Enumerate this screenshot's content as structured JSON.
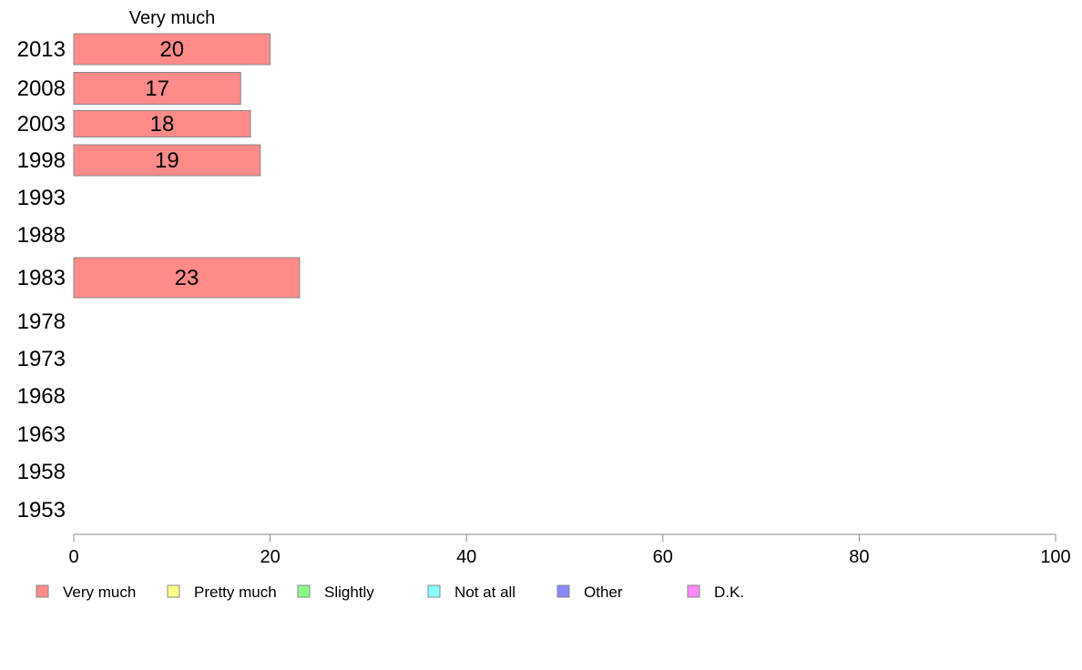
{
  "chart_data": {
    "type": "bar",
    "orientation": "horizontal",
    "stacked": true,
    "column_header": "Very much",
    "categories": [
      "2013",
      "2008",
      "2003",
      "1998",
      "1993",
      "1988",
      "1983",
      "1978",
      "1973",
      "1968",
      "1963",
      "1958",
      "1953"
    ],
    "series": [
      {
        "name": "Very much",
        "color": "#ff8a8a",
        "values": [
          20,
          17,
          18,
          19,
          null,
          null,
          23,
          null,
          null,
          null,
          null,
          null,
          null
        ],
        "labels": [
          "20",
          "17",
          "18",
          "19",
          "",
          "",
          "23",
          "",
          "",
          "",
          "",
          "",
          ""
        ]
      },
      {
        "name": "Pretty much",
        "color": "#ffff88",
        "values": [
          null,
          null,
          null,
          null,
          null,
          null,
          null,
          null,
          null,
          null,
          null,
          null,
          null
        ]
      },
      {
        "name": "Slightly",
        "color": "#88ff88",
        "values": [
          null,
          null,
          null,
          null,
          null,
          null,
          null,
          null,
          null,
          null,
          null,
          null,
          null
        ]
      },
      {
        "name": "Not at all",
        "color": "#88ffff",
        "values": [
          null,
          null,
          null,
          null,
          null,
          null,
          null,
          null,
          null,
          null,
          null,
          null,
          null
        ]
      },
      {
        "name": "Other",
        "color": "#8888ff",
        "values": [
          null,
          null,
          null,
          null,
          null,
          null,
          null,
          null,
          null,
          null,
          null,
          null,
          null
        ]
      },
      {
        "name": "D.K.",
        "color": "#ff88ff",
        "values": [
          null,
          null,
          null,
          null,
          null,
          null,
          null,
          null,
          null,
          null,
          null,
          null,
          null
        ]
      }
    ],
    "xlim": [
      0,
      100
    ],
    "xticks": [
      "0",
      "20",
      "40",
      "60",
      "80",
      "100"
    ],
    "grid": false,
    "legend_position": "bottom",
    "axis_color": "#888888"
  }
}
